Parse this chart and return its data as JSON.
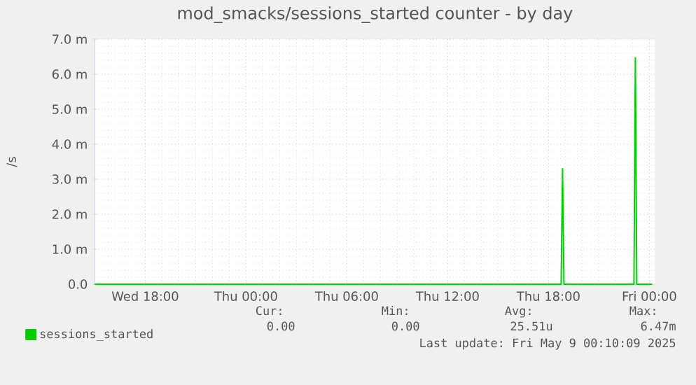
{
  "chart_data": {
    "type": "line",
    "title": "mod_smacks/sessions_started counter - by day",
    "ylabel": "/s",
    "xlim": [
      "2025-05-07T15:00",
      "2025-05-09T00:20"
    ],
    "ylim": [
      0,
      7
    ],
    "xticks": [
      {
        "value": "2025-05-07T18:00",
        "label": "Wed 18:00"
      },
      {
        "value": "2025-05-08T00:00",
        "label": "Thu 00:00"
      },
      {
        "value": "2025-05-08T06:00",
        "label": "Thu 06:00"
      },
      {
        "value": "2025-05-08T12:00",
        "label": "Thu 12:00"
      },
      {
        "value": "2025-05-08T18:00",
        "label": "Thu 18:00"
      },
      {
        "value": "2025-05-09T00:00",
        "label": "Fri 00:00"
      }
    ],
    "yticks": [
      {
        "value": 0,
        "label": "0.0"
      },
      {
        "value": 1,
        "label": "1.0 m"
      },
      {
        "value": 2,
        "label": "2.0 m"
      },
      {
        "value": 3,
        "label": "3.0 m"
      },
      {
        "value": 4,
        "label": "4.0 m"
      },
      {
        "value": 5,
        "label": "5.0 m"
      },
      {
        "value": 6,
        "label": "6.0 m"
      },
      {
        "value": 7,
        "label": "7.0 m"
      }
    ],
    "grid": true,
    "legend": "bottom",
    "series": [
      {
        "name": "sessions_started",
        "color": "#00cc00",
        "x": [
          "2025-05-07T15:00",
          "2025-05-08T18:45",
          "2025-05-08T18:50",
          "2025-05-08T18:55",
          "2025-05-08T23:05",
          "2025-05-08T23:10",
          "2025-05-08T23:15",
          "2025-05-09T00:10"
        ],
        "values": [
          0,
          0,
          3.3,
          0,
          0,
          6.47,
          0,
          0
        ]
      }
    ],
    "annotations": [
      "Cur:",
      "Min:",
      "Avg:",
      "Max:",
      "0.00",
      "0.00",
      "25.51u",
      "6.47m",
      "Last update: Fri May  9 00:10:09 2025"
    ]
  }
}
